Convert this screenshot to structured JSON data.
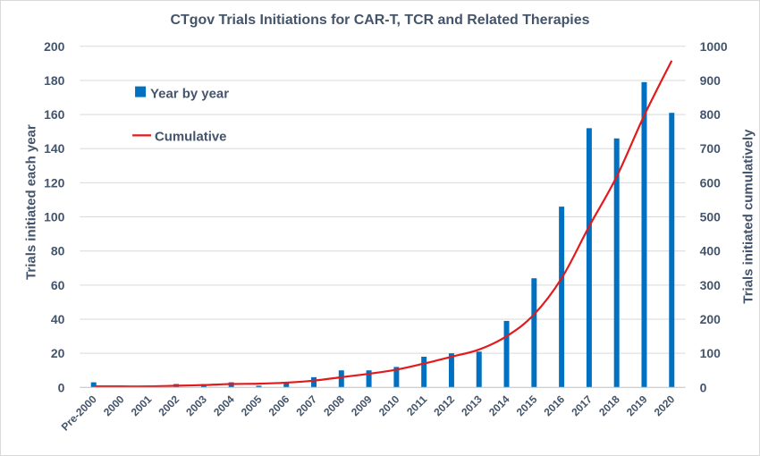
{
  "chart_data": {
    "type": "bar+line",
    "title": "CTgov Trials Initiations for  CAR-T, TCR and Related Therapies",
    "categories": [
      "Pre-2000",
      "2000",
      "2001",
      "2002",
      "2003",
      "2004",
      "2005",
      "2006",
      "2007",
      "2008",
      "2009",
      "2010",
      "2011",
      "2012",
      "2013",
      "2014",
      "2015",
      "2016",
      "2017",
      "2018",
      "2019",
      "2020"
    ],
    "series": [
      {
        "name": "Year by year",
        "type": "bar",
        "axis": "left",
        "color": "#0070c0",
        "values": [
          3,
          0,
          0,
          2,
          2,
          3,
          1,
          3,
          6,
          10,
          10,
          12,
          18,
          20,
          21,
          39,
          64,
          106,
          152,
          146,
          179,
          161
        ]
      },
      {
        "name": "Cumulative",
        "type": "line",
        "axis": "right",
        "color": "#e31a1c",
        "values": [
          3,
          3,
          3,
          5,
          7,
          10,
          11,
          14,
          20,
          30,
          40,
          52,
          70,
          90,
          111,
          150,
          214,
          320,
          472,
          618,
          797,
          958
        ]
      }
    ],
    "ylabel": "Trials initiated each year",
    "y2label": "Trials initiated cumulatively",
    "ylim": [
      0,
      200
    ],
    "y2lim": [
      0,
      1000
    ],
    "yticks": [
      0,
      20,
      40,
      60,
      80,
      100,
      120,
      140,
      160,
      180,
      200
    ],
    "y2ticks": [
      0,
      100,
      200,
      300,
      400,
      500,
      600,
      700,
      800,
      900,
      1000
    ],
    "grid": true,
    "legend": "top-left"
  }
}
